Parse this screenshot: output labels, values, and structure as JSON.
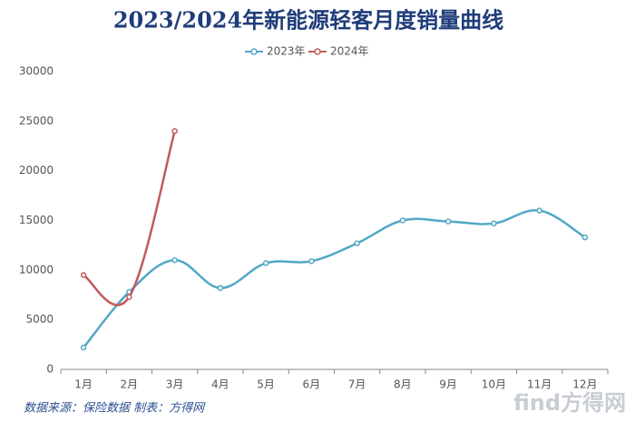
{
  "chart_data": {
    "type": "line",
    "title": "2023/2024年新能源轻客月度销量曲线",
    "categories": [
      "1月",
      "2月",
      "3月",
      "4月",
      "5月",
      "6月",
      "7月",
      "8月",
      "9月",
      "10月",
      "11月",
      "12月"
    ],
    "series": [
      {
        "name": "2023年",
        "color": "#52a8c6",
        "values": [
          2200,
          7800,
          11000,
          8200,
          10700,
          10900,
          12700,
          15000,
          14900,
          14700,
          16000,
          13300
        ]
      },
      {
        "name": "2024年",
        "color": "#c05b5b",
        "values": [
          9500,
          7300,
          24000,
          null,
          null,
          null,
          null,
          null,
          null,
          null,
          null,
          null
        ]
      }
    ],
    "ylim": [
      0,
      30000
    ],
    "yticks": [
      0,
      5000,
      10000,
      15000,
      20000,
      25000,
      30000
    ],
    "grid": false,
    "legend": "top",
    "source": "数据来源：保险数据 制表：方得网",
    "watermark": "find方得网"
  }
}
